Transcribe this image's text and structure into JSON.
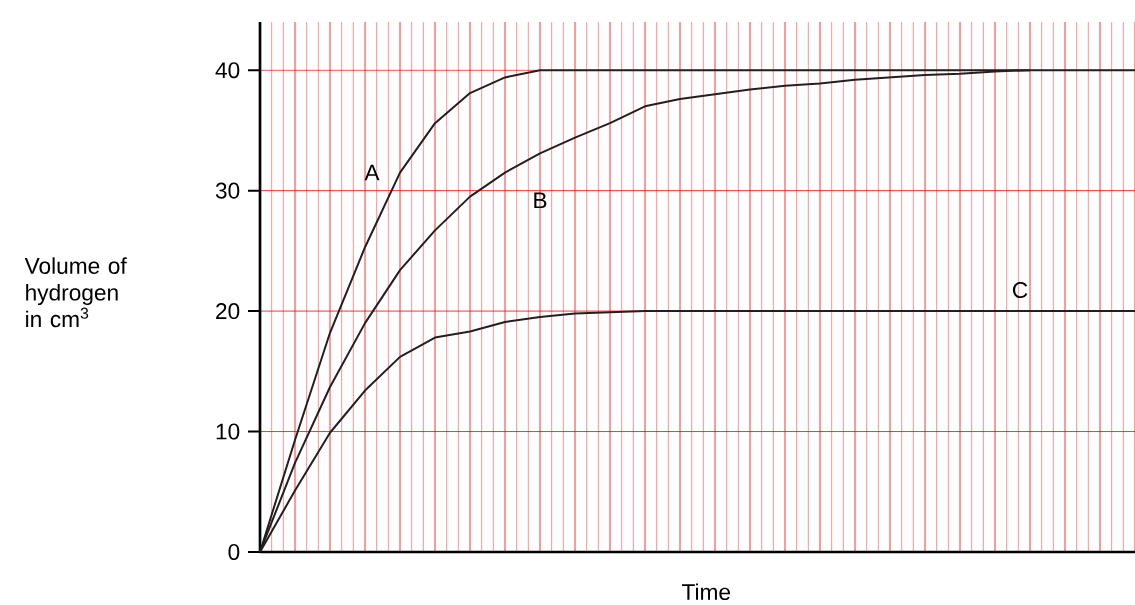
{
  "chart_data": {
    "type": "line",
    "xlabel": "Time",
    "ylabel": "Volume of hydrogen in cm$^{3}$",
    "categories": [
      null,
      null,
      null,
      null,
      null,
      null,
      null,
      null,
      null,
      null,
      null,
      null,
      null,
      null,
      null,
      null,
      null,
      null,
      null,
      null,
      null,
      null,
      null,
      null,
      null,
      null
    ],
    "series": [
      {
        "name": "A",
        "color": "#231f20",
        "values": [
          0,
          9.3,
          18.2,
          25.3,
          31.5,
          35.6,
          38.1,
          39.4,
          40,
          40,
          40,
          40,
          40,
          40,
          40,
          40,
          40,
          40,
          40,
          40,
          40,
          40,
          40,
          40,
          40,
          40
        ]
      },
      {
        "name": "B",
        "color": "#231f20",
        "values": [
          0,
          7.4,
          13.7,
          19.0,
          23.4,
          26.7,
          29.5,
          31.5,
          33.1,
          34.4,
          35.6,
          37.0,
          37.6,
          38.0,
          38.4,
          38.7,
          38.9,
          39.2,
          39.4,
          39.6,
          39.7,
          39.9,
          40,
          null,
          null,
          null
        ]
      },
      {
        "name": "C",
        "color": "#231f20",
        "values": [
          0,
          5.1,
          9.9,
          13.4,
          16.2,
          17.8,
          18.3,
          19.1,
          19.5,
          19.8,
          19.9,
          20,
          20,
          20,
          20,
          20,
          20,
          20,
          20,
          20,
          20,
          20,
          20,
          20,
          20,
          20
        ]
      }
    ],
    "ylim": [
      0,
      44
    ],
    "yticks": [
      0,
      10,
      20,
      30,
      40
    ],
    "grid": true,
    "line_style": "solid"
  }
}
